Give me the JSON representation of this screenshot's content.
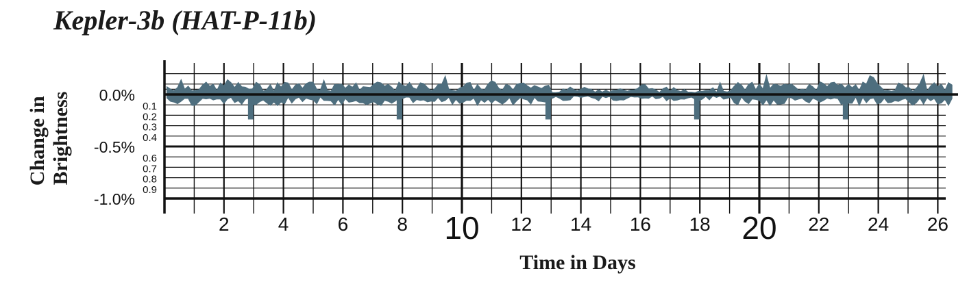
{
  "chart_data": {
    "type": "line",
    "title": "Kepler-3b (HAT-P-11b)",
    "xlabel": "Time in Days",
    "ylabel_lines": [
      "Change in",
      "Brightness"
    ],
    "xlim": [
      0,
      26.6
    ],
    "ylim": [
      -1.0,
      0.3
    ],
    "x_major_ticks": [
      2,
      4,
      6,
      8,
      10,
      12,
      14,
      16,
      18,
      20,
      22,
      24,
      26
    ],
    "x_emphasized_ticks": [
      10,
      20
    ],
    "y_major_ticks": [
      {
        "value": 0.0,
        "label": "0.0%"
      },
      {
        "value": -0.5,
        "label": "-0.5%"
      },
      {
        "value": -1.0,
        "label": "-1.0%"
      }
    ],
    "y_minor_ticks": [
      {
        "value": -0.1,
        "label": "0.1"
      },
      {
        "value": -0.2,
        "label": "0.2"
      },
      {
        "value": -0.3,
        "label": "0.3"
      },
      {
        "value": -0.4,
        "label": "0.4"
      },
      {
        "value": -0.6,
        "label": "0.6"
      },
      {
        "value": -0.7,
        "label": "0.7"
      },
      {
        "value": -0.8,
        "label": "0.8"
      },
      {
        "value": -0.9,
        "label": "0.9"
      }
    ],
    "noise_amplitude_percent": 0.12,
    "transits": [
      {
        "time": 2.9,
        "depth_percent": -0.24
      },
      {
        "time": 7.9,
        "depth_percent": -0.24
      },
      {
        "time": 12.9,
        "depth_percent": -0.24
      },
      {
        "time": 17.9,
        "depth_percent": -0.24
      },
      {
        "time": 22.9,
        "depth_percent": -0.24
      }
    ],
    "series_color": "#4e6e7e",
    "grid": true
  }
}
